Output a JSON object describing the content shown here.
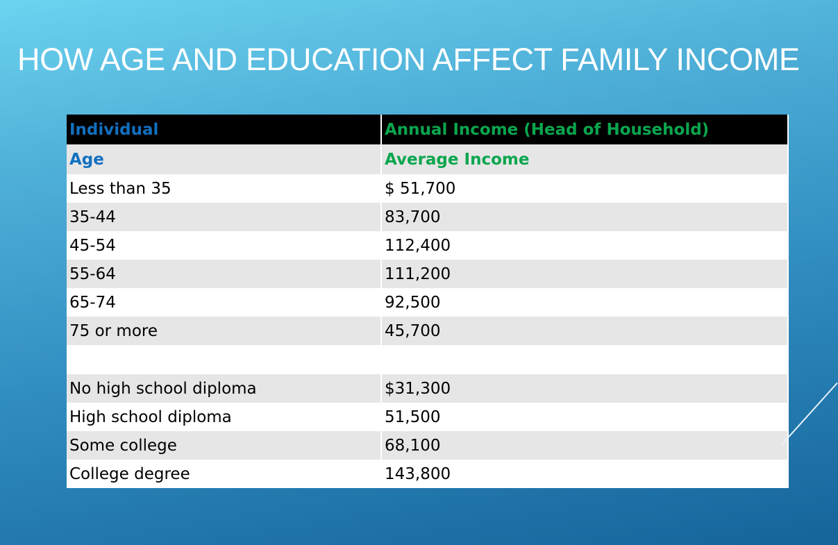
{
  "slide": {
    "title": "HOW AGE AND EDUCATION AFFECT FAMILY INCOME"
  },
  "table": {
    "header": {
      "col1": "Individual",
      "col2": "Annual Income (Head of Household)"
    },
    "subheader": {
      "col1": "Age",
      "col2": "Average Income"
    },
    "age_rows": [
      {
        "label": "Less than 35",
        "value": "$ 51,700"
      },
      {
        "label": "35-44",
        "value": "83,700"
      },
      {
        "label": "45-54",
        "value": "112,400"
      },
      {
        "label": "55-64",
        "value": "111,200"
      },
      {
        "label": "65-74",
        "value": "92,500"
      },
      {
        "label": "75 or more",
        "value": "45,700"
      }
    ],
    "education_rows": [
      {
        "label": "No high school diploma",
        "value": "$31,300"
      },
      {
        "label": "High school diploma",
        "value": "51,500"
      },
      {
        "label": "Some college",
        "value": "68,100"
      },
      {
        "label": "College degree",
        "value": "143,800"
      }
    ]
  },
  "colors": {
    "header_bg": "#000000",
    "blue_text": "#1270c0",
    "green_text": "#0aa64e",
    "shade_row": "#e6e6e6"
  }
}
